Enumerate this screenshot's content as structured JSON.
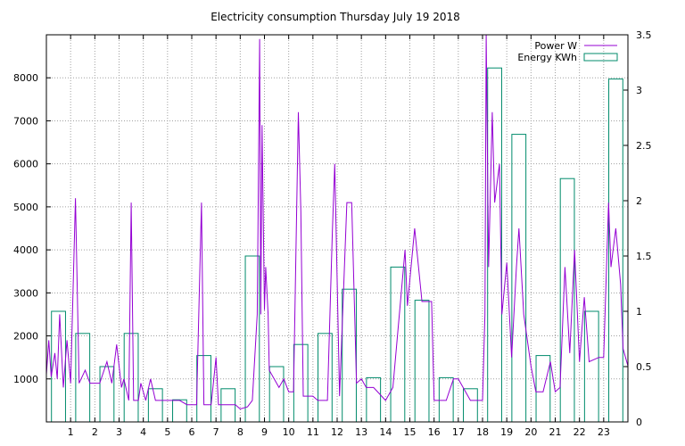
{
  "chart_data": {
    "type": "bar+line",
    "title": "Electricity consumption Thursday July 19 2018",
    "xlabel": "",
    "ylabel": "",
    "y2label": "",
    "x_ticks": [
      "1",
      "2",
      "3",
      "4",
      "5",
      "6",
      "7",
      "8",
      "9",
      "10",
      "11",
      "12",
      "13",
      "14",
      "15",
      "16",
      "17",
      "18",
      "19",
      "20",
      "21",
      "22",
      "23"
    ],
    "xlim": [
      0,
      24
    ],
    "ylim": [
      0,
      9000
    ],
    "y_ticks": [
      "1000",
      "2000",
      "3000",
      "4000",
      "5000",
      "6000",
      "7000",
      "8000"
    ],
    "y2lim": [
      0,
      3.5
    ],
    "y2_ticks": [
      "0",
      "0.5",
      "1",
      "1.5",
      "2",
      "2.5",
      "3",
      "3.5"
    ],
    "grid": true,
    "legend_position": "top-right",
    "series": [
      {
        "name": "Power W",
        "kind": "line",
        "color": "#9400d3",
        "points": [
          [
            0.0,
            1100
          ],
          [
            0.1,
            1900
          ],
          [
            0.2,
            1050
          ],
          [
            0.35,
            1600
          ],
          [
            0.45,
            1000
          ],
          [
            0.55,
            2500
          ],
          [
            0.7,
            800
          ],
          [
            0.85,
            1900
          ],
          [
            1.0,
            900
          ],
          [
            1.2,
            5200
          ],
          [
            1.35,
            900
          ],
          [
            1.6,
            1200
          ],
          [
            1.8,
            900
          ],
          [
            2.2,
            900
          ],
          [
            2.5,
            1400
          ],
          [
            2.7,
            900
          ],
          [
            2.9,
            1800
          ],
          [
            3.1,
            800
          ],
          [
            3.2,
            1000
          ],
          [
            3.4,
            500
          ],
          [
            3.5,
            5100
          ],
          [
            3.6,
            500
          ],
          [
            3.8,
            500
          ],
          [
            3.9,
            900
          ],
          [
            4.1,
            500
          ],
          [
            4.3,
            1000
          ],
          [
            4.5,
            500
          ],
          [
            5.0,
            500
          ],
          [
            5.5,
            500
          ],
          [
            5.8,
            400
          ],
          [
            6.2,
            400
          ],
          [
            6.4,
            5100
          ],
          [
            6.5,
            400
          ],
          [
            6.8,
            400
          ],
          [
            7.0,
            1500
          ],
          [
            7.1,
            400
          ],
          [
            7.5,
            400
          ],
          [
            7.8,
            400
          ],
          [
            8.0,
            300
          ],
          [
            8.3,
            350
          ],
          [
            8.5,
            500
          ],
          [
            8.7,
            2500
          ],
          [
            8.8,
            8900
          ],
          [
            8.85,
            2500
          ],
          [
            8.9,
            6900
          ],
          [
            9.0,
            2600
          ],
          [
            9.05,
            3600
          ],
          [
            9.15,
            2500
          ],
          [
            9.2,
            1200
          ],
          [
            9.4,
            1000
          ],
          [
            9.6,
            800
          ],
          [
            9.8,
            1000
          ],
          [
            10.0,
            700
          ],
          [
            10.2,
            700
          ],
          [
            10.4,
            7200
          ],
          [
            10.5,
            4900
          ],
          [
            10.6,
            600
          ],
          [
            11.0,
            600
          ],
          [
            11.2,
            500
          ],
          [
            11.6,
            500
          ],
          [
            11.8,
            4400
          ],
          [
            11.9,
            6000
          ],
          [
            12.0,
            3300
          ],
          [
            12.1,
            600
          ],
          [
            12.4,
            5100
          ],
          [
            12.6,
            5100
          ],
          [
            12.8,
            900
          ],
          [
            13.0,
            1000
          ],
          [
            13.2,
            800
          ],
          [
            13.5,
            800
          ],
          [
            14.0,
            500
          ],
          [
            14.3,
            800
          ],
          [
            14.6,
            2700
          ],
          [
            14.8,
            4000
          ],
          [
            14.9,
            2700
          ],
          [
            15.2,
            4500
          ],
          [
            15.5,
            2800
          ],
          [
            15.9,
            2800
          ],
          [
            16.0,
            500
          ],
          [
            16.5,
            500
          ],
          [
            16.8,
            1000
          ],
          [
            17.0,
            1000
          ],
          [
            17.5,
            500
          ],
          [
            18.0,
            500
          ],
          [
            18.1,
            2500
          ],
          [
            18.15,
            9000
          ],
          [
            18.25,
            3600
          ],
          [
            18.4,
            7200
          ],
          [
            18.5,
            5100
          ],
          [
            18.7,
            6000
          ],
          [
            18.8,
            2500
          ],
          [
            19.0,
            3700
          ],
          [
            19.2,
            1500
          ],
          [
            19.4,
            3600
          ],
          [
            19.5,
            4500
          ],
          [
            19.7,
            2500
          ],
          [
            20.0,
            1300
          ],
          [
            20.2,
            700
          ],
          [
            20.5,
            700
          ],
          [
            20.8,
            1400
          ],
          [
            21.0,
            700
          ],
          [
            21.2,
            800
          ],
          [
            21.4,
            3600
          ],
          [
            21.6,
            1600
          ],
          [
            21.8,
            4000
          ],
          [
            22.0,
            1400
          ],
          [
            22.2,
            2900
          ],
          [
            22.4,
            1400
          ],
          [
            22.8,
            1500
          ],
          [
            23.0,
            1500
          ],
          [
            23.2,
            5100
          ],
          [
            23.3,
            3600
          ],
          [
            23.5,
            4500
          ],
          [
            23.7,
            3200
          ],
          [
            23.8,
            1700
          ],
          [
            24.0,
            1300
          ]
        ]
      },
      {
        "name": "Energy KWh",
        "kind": "bar",
        "color": "#008b6b",
        "hours": [
          0,
          1,
          2,
          3,
          4,
          5,
          6,
          7,
          8,
          9,
          10,
          11,
          12,
          13,
          14,
          15,
          16,
          17,
          18,
          19,
          20,
          21,
          22,
          23
        ],
        "values": [
          1.0,
          0.8,
          0.5,
          0.8,
          0.3,
          0.2,
          0.6,
          0.3,
          1.5,
          0.5,
          0.7,
          0.8,
          1.2,
          0.4,
          1.4,
          1.1,
          0.4,
          0.3,
          3.2,
          2.6,
          0.6,
          2.2,
          1.0,
          3.1
        ]
      }
    ]
  }
}
